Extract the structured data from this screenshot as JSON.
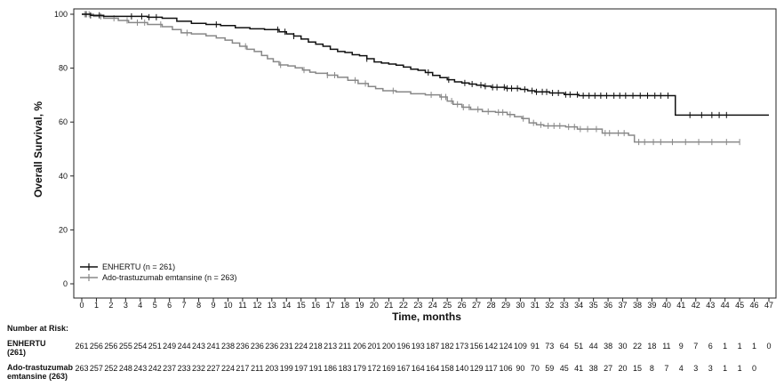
{
  "chart_data": {
    "type": "line",
    "step": true,
    "xlabel": "Time, months",
    "ylabel": "Overall Survival, %",
    "xlim": [
      0,
      47
    ],
    "ylim": [
      0,
      100
    ],
    "x_ticks": [
      0,
      1,
      2,
      3,
      4,
      5,
      6,
      7,
      8,
      9,
      10,
      11,
      12,
      13,
      14,
      15,
      16,
      17,
      18,
      19,
      20,
      21,
      22,
      23,
      24,
      25,
      26,
      27,
      28,
      29,
      30,
      31,
      32,
      33,
      34,
      35,
      36,
      37,
      38,
      39,
      40,
      41,
      42,
      43,
      44,
      45,
      46,
      47
    ],
    "y_ticks": [
      0,
      20,
      40,
      60,
      80,
      100
    ],
    "grid": false,
    "legend_position": "bottom-left",
    "series": [
      {
        "name": "ENHERTU (n = 261)",
        "color": "#111111",
        "points": [
          [
            0,
            100
          ],
          [
            0.6,
            99.6
          ],
          [
            1.5,
            99.2
          ],
          [
            4.5,
            98.9
          ],
          [
            5.5,
            98.5
          ],
          [
            6.5,
            97.4
          ],
          [
            7.5,
            96.6
          ],
          [
            8.5,
            96.2
          ],
          [
            9.5,
            95.8
          ],
          [
            10.5,
            95.0
          ],
          [
            11.5,
            94.6
          ],
          [
            12.5,
            94.3
          ],
          [
            13.5,
            93.5
          ],
          [
            14,
            92.7
          ],
          [
            14.5,
            91.9
          ],
          [
            15,
            90.8
          ],
          [
            15.5,
            89.7
          ],
          [
            16,
            88.9
          ],
          [
            16.5,
            88.1
          ],
          [
            17,
            87.0
          ],
          [
            17.5,
            86.2
          ],
          [
            18,
            85.8
          ],
          [
            18.5,
            85.0
          ],
          [
            19,
            84.6
          ],
          [
            19.5,
            83.5
          ],
          [
            20,
            82.3
          ],
          [
            20.5,
            81.9
          ],
          [
            21,
            81.5
          ],
          [
            21.5,
            81.1
          ],
          [
            22,
            80.4
          ],
          [
            22.5,
            79.6
          ],
          [
            23,
            79.2
          ],
          [
            23.5,
            78.4
          ],
          [
            24,
            77.3
          ],
          [
            24.5,
            76.5
          ],
          [
            25,
            75.7
          ],
          [
            25.5,
            74.9
          ],
          [
            26,
            74.5
          ],
          [
            26.5,
            74.1
          ],
          [
            27,
            73.7
          ],
          [
            27.5,
            73.3
          ],
          [
            28,
            72.9
          ],
          [
            29,
            72.5
          ],
          [
            30,
            72.1
          ],
          [
            30.5,
            71.6
          ],
          [
            31,
            71.2
          ],
          [
            32,
            70.8
          ],
          [
            33,
            70.2
          ],
          [
            34,
            69.8
          ],
          [
            36,
            69.8
          ],
          [
            38,
            69.8
          ],
          [
            40.5,
            69.8
          ],
          [
            40.6,
            62.6
          ],
          [
            47,
            62.6
          ]
        ],
        "censored": [
          0.3,
          0.6,
          1.2,
          3.4,
          4.1,
          4.6,
          5.1,
          9.2,
          13.4,
          13.9,
          14.5,
          19.5,
          23.7,
          25.1,
          26.2,
          26.7,
          27.3,
          27.6,
          28.1,
          28.4,
          28.9,
          29.1,
          29.4,
          29.8,
          30.3,
          30.8,
          31.1,
          31.5,
          31.8,
          32.2,
          32.6,
          33.1,
          33.4,
          33.9,
          34.3,
          34.7,
          35.1,
          35.5,
          35.9,
          36.4,
          36.8,
          37.2,
          37.7,
          38.2,
          38.7,
          39.2,
          39.6,
          40.1,
          41.6,
          42.4,
          43.1,
          43.6,
          44.1
        ]
      },
      {
        "name": "Ado-trastuzumab emtansine (n = 263)",
        "color": "#888888",
        "points": [
          [
            0,
            100
          ],
          [
            0.8,
            99.2
          ],
          [
            1.5,
            98.5
          ],
          [
            2.5,
            97.7
          ],
          [
            3.2,
            96.9
          ],
          [
            4.5,
            96.2
          ],
          [
            5.5,
            95.4
          ],
          [
            6.2,
            94.3
          ],
          [
            6.8,
            93.1
          ],
          [
            7.5,
            92.7
          ],
          [
            8.5,
            92.0
          ],
          [
            9.2,
            91.2
          ],
          [
            9.8,
            90.4
          ],
          [
            10.3,
            89.3
          ],
          [
            10.8,
            88.1
          ],
          [
            11.3,
            87.0
          ],
          [
            11.8,
            86.2
          ],
          [
            12.3,
            84.7
          ],
          [
            12.7,
            83.5
          ],
          [
            13.1,
            82.4
          ],
          [
            13.5,
            81.2
          ],
          [
            14.1,
            80.8
          ],
          [
            14.6,
            80.1
          ],
          [
            15.1,
            79.3
          ],
          [
            15.6,
            78.5
          ],
          [
            16,
            78.1
          ],
          [
            16.8,
            77.4
          ],
          [
            17.5,
            76.6
          ],
          [
            18.2,
            75.5
          ],
          [
            18.9,
            74.3
          ],
          [
            19.6,
            73.2
          ],
          [
            20.1,
            72.4
          ],
          [
            20.6,
            71.6
          ],
          [
            21.5,
            71.2
          ],
          [
            22.5,
            70.5
          ],
          [
            23.5,
            70.1
          ],
          [
            24.5,
            69.3
          ],
          [
            25,
            67.8
          ],
          [
            25.4,
            66.6
          ],
          [
            26,
            65.5
          ],
          [
            26.6,
            64.7
          ],
          [
            27.4,
            63.9
          ],
          [
            28.3,
            63.6
          ],
          [
            29.1,
            62.8
          ],
          [
            29.6,
            62.0
          ],
          [
            30.1,
            61.3
          ],
          [
            30.6,
            59.7
          ],
          [
            31.1,
            59.0
          ],
          [
            31.6,
            58.6
          ],
          [
            33.1,
            58.2
          ],
          [
            33.9,
            57.4
          ],
          [
            35,
            57.4
          ],
          [
            35.6,
            55.9
          ],
          [
            36.5,
            55.9
          ],
          [
            37.4,
            55.1
          ],
          [
            37.8,
            52.6
          ],
          [
            45,
            52.6
          ]
        ],
        "censored": [
          0.2,
          0.5,
          1.3,
          2.2,
          3.1,
          3.8,
          4.3,
          5.4,
          7.2,
          11.2,
          13.6,
          15.2,
          16.8,
          17.3,
          18.7,
          19.4,
          21.3,
          23.9,
          24.6,
          24.9,
          25.3,
          25.7,
          26.1,
          26.5,
          27.1,
          27.8,
          28.5,
          28.8,
          29.3,
          30.2,
          30.9,
          31.4,
          31.9,
          32.3,
          32.7,
          33.3,
          33.7,
          34.1,
          34.6,
          35.2,
          35.8,
          36.1,
          36.7,
          37.1,
          38.1,
          38.5,
          39.1,
          39.6,
          40.4,
          41.3,
          42.2,
          43.1,
          44.1,
          45
        ]
      }
    ],
    "number_at_risk": {
      "heading": "Number at Risk:",
      "rows": [
        {
          "label_lines": [
            "ENHERTU",
            "(261)"
          ],
          "counts": [
            "261",
            "256",
            "256",
            "255",
            "254",
            "251",
            "249",
            "244",
            "243",
            "241",
            "238",
            "236",
            "236",
            "236",
            "231",
            "224",
            "218",
            "213",
            "211",
            "206",
            "201",
            "200",
            "196",
            "193",
            "187",
            "182",
            "173",
            "156",
            "142",
            "124",
            "109",
            "91",
            "73",
            "64",
            "51",
            "44",
            "38",
            "30",
            "22",
            "18",
            "11",
            "9",
            "7",
            "6",
            "1",
            "1",
            "1",
            "0"
          ]
        },
        {
          "label_lines": [
            "Ado-trastuzumab",
            "emtansine (263)"
          ],
          "counts": [
            "263",
            "257",
            "252",
            "248",
            "243",
            "242",
            "237",
            "233",
            "232",
            "227",
            "224",
            "217",
            "211",
            "203",
            "199",
            "197",
            "191",
            "186",
            "183",
            "179",
            "172",
            "169",
            "167",
            "164",
            "164",
            "158",
            "140",
            "129",
            "117",
            "106",
            "90",
            "70",
            "59",
            "45",
            "41",
            "38",
            "27",
            "20",
            "15",
            "8",
            "7",
            "4",
            "3",
            "3",
            "1",
            "1",
            "0"
          ]
        }
      ]
    }
  }
}
